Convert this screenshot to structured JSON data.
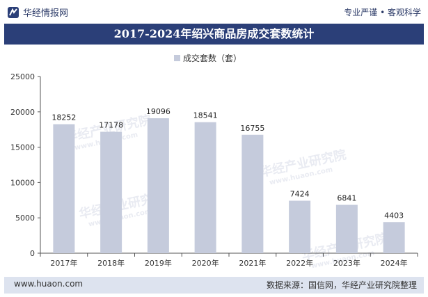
{
  "header": {
    "brand": "华经情报网",
    "tagline": "专业严谨 • 客观科学"
  },
  "title": "2017-2024年绍兴商品房成交套数统计",
  "footer": {
    "website": "www.huaon.com",
    "source": "数据来源：国信网，华经产业研究院整理"
  },
  "watermark": {
    "text": "华经产业研究院",
    "url": "www.huaon.com"
  },
  "chart_data": {
    "type": "bar",
    "title": "2017-2024年绍兴商品房成交套数统计",
    "categories": [
      "2017年",
      "2018年",
      "2019年",
      "2020年",
      "2021年",
      "2022年",
      "2023年",
      "2024年"
    ],
    "series": [
      {
        "name": "成交套数（套）",
        "values": [
          18252,
          17178,
          19096,
          18541,
          16755,
          7424,
          6841,
          4403
        ]
      }
    ],
    "yticks": [
      0,
      5000,
      10000,
      15000,
      20000,
      25000
    ],
    "ylim": [
      0,
      25000
    ],
    "xlabel": "",
    "ylabel": "",
    "legend": "top-center",
    "bar_color": "#c5cbdc",
    "grid": false
  }
}
